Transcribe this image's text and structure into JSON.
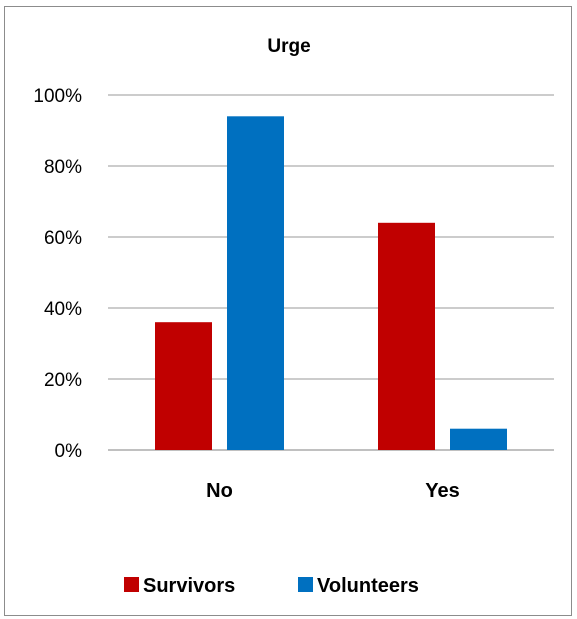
{
  "chart_data": {
    "type": "bar",
    "title": "Urge",
    "categories": [
      "No",
      "Yes"
    ],
    "series": [
      {
        "name": "Survivors",
        "color": "#c00000",
        "values": [
          36,
          64
        ]
      },
      {
        "name": "Volunteers",
        "color": "#0070c0",
        "values": [
          94,
          6
        ]
      }
    ],
    "ylim": [
      0,
      100
    ],
    "yticks": [
      "0%",
      "20%",
      "40%",
      "60%",
      "80%",
      "100%"
    ],
    "ytick_values": [
      0,
      20,
      40,
      60,
      80,
      100
    ],
    "grid": true,
    "legend": "bottom"
  }
}
